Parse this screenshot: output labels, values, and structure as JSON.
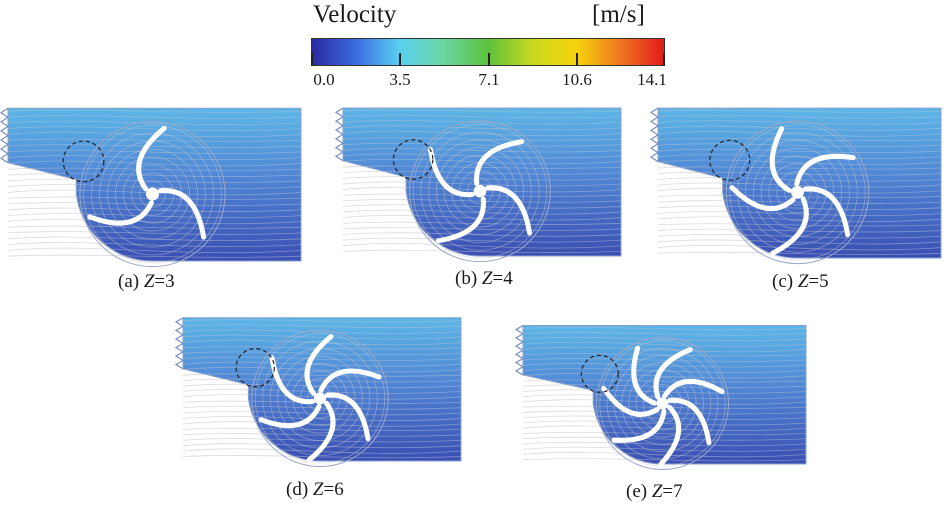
{
  "legend": {
    "title": "Velocity",
    "unit": "[m/s]",
    "ticks": [
      "0.0",
      "3.5",
      "7.1",
      "10.6",
      "14.1"
    ],
    "tick_values": [
      0.0,
      3.5,
      7.1,
      10.6,
      14.1
    ],
    "range": [
      0.0,
      14.1
    ],
    "colormap": [
      "#2a2aa0",
      "#3b6be0",
      "#5ad0f0",
      "#6ad6a0",
      "#5cc23c",
      "#c8d820",
      "#f6d40c",
      "#f07820",
      "#e01a1a"
    ]
  },
  "panels": [
    {
      "id": "a",
      "label": "(a) ",
      "var": "Z",
      "eq": "=3",
      "blades": 3
    },
    {
      "id": "b",
      "label": "(b) ",
      "var": "Z",
      "eq": "=4",
      "blades": 4
    },
    {
      "id": "c",
      "label": "(c) ",
      "var": "Z",
      "eq": "=5",
      "blades": 5
    },
    {
      "id": "d",
      "label": "(d) ",
      "var": "Z",
      "eq": "=6",
      "blades": 6
    },
    {
      "id": "e",
      "label": "(e) ",
      "var": "Z",
      "eq": "=7",
      "blades": 7
    }
  ]
}
